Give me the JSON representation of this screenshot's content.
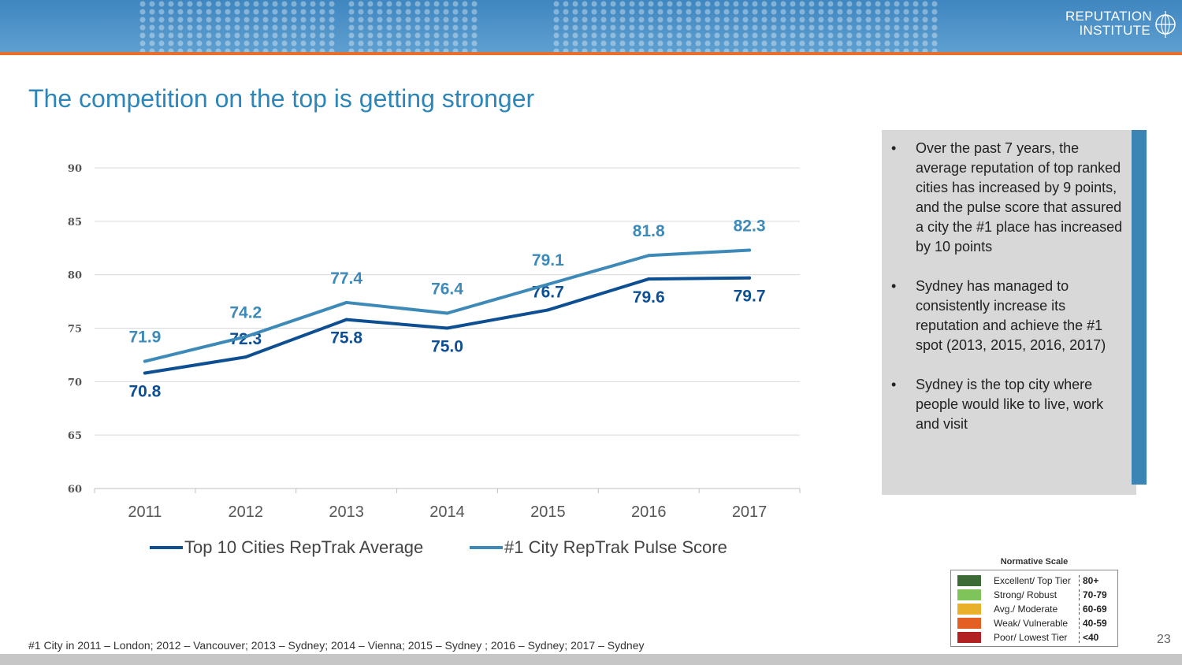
{
  "header": {
    "logo_line1": "REPUTATION",
    "logo_line2": "INSTITUTE",
    "colors": {
      "band": "#4f93c8",
      "rule": "#e8702a"
    }
  },
  "title": "The competition on the top is getting stronger",
  "chart_data": {
    "type": "line",
    "categories": [
      "2011",
      "2012",
      "2013",
      "2014",
      "2015",
      "2016",
      "2017"
    ],
    "ylim": [
      60,
      90
    ],
    "yticks": [
      60,
      65,
      70,
      75,
      80,
      85,
      90
    ],
    "grid": true,
    "legend_position": "bottom",
    "series": [
      {
        "name": "Top 10 Cities RepTrak Average",
        "values": [
          70.8,
          72.3,
          75.8,
          75.0,
          76.7,
          79.6,
          79.7
        ],
        "labels": [
          "70.8",
          "72.3",
          "75.8",
          "75.0",
          "76.7",
          "79.6",
          "79.7"
        ],
        "color": "#0d4f92"
      },
      {
        "name": "#1 City RepTrak Pulse Score",
        "values": [
          71.9,
          74.2,
          77.4,
          76.4,
          79.1,
          81.8,
          82.3
        ],
        "labels": [
          "71.9",
          "74.2",
          "77.4",
          "76.4",
          "79.1",
          "81.8",
          "82.3"
        ],
        "color": "#3d8ab8"
      }
    ]
  },
  "side_panel": {
    "bullets": [
      "Over the past 7 years, the average reputation of top ranked cities has increased by 9 points, and the pulse score that assured a city the #1 place has increased by 10 points",
      "Sydney has managed to consistently increase its reputation and achieve the #1 spot (2013, 2015, 2016, 2017)",
      "Sydney is the top city where people would like to live, work and visit"
    ],
    "bullet_char": "•"
  },
  "normative_scale": {
    "title": "Normative Scale",
    "rows": [
      {
        "label": "Excellent/ Top Tier",
        "range": "80+",
        "color": "#3d6b35"
      },
      {
        "label": "Strong/ Robust",
        "range": "70-79",
        "color": "#7ec45b"
      },
      {
        "label": "Avg./ Moderate",
        "range": "60-69",
        "color": "#e9b02a"
      },
      {
        "label": "Weak/ Vulnerable",
        "range": "40-59",
        "color": "#e35f24"
      },
      {
        "label": "Poor/ Lowest Tier",
        "range": "<40",
        "color": "#b22222"
      }
    ]
  },
  "footnote": "#1 City in 2011 – London; 2012 – Vancouver; 2013 – Sydney; 2014 – Vienna; 2015 – Sydney ; 2016 – Sydney; 2017 – Sydney",
  "page_number": "23"
}
